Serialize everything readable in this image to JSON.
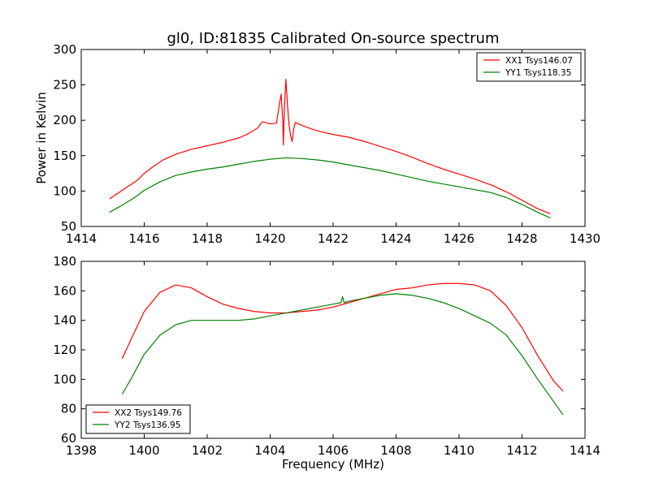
{
  "title": "gl0, ID:81835 Calibrated On-source spectrum",
  "chart_data": [
    {
      "type": "line",
      "ylabel": "Power in Kelvin",
      "xlabel": "",
      "xlim": [
        1414,
        1430
      ],
      "ylim": [
        50,
        300
      ],
      "xticks": [
        1414,
        1416,
        1418,
        1420,
        1422,
        1424,
        1426,
        1428,
        1430
      ],
      "yticks": [
        50,
        100,
        150,
        200,
        250,
        300
      ],
      "grid": false,
      "legend_position": "top-right",
      "series": [
        {
          "name": "XX1 Tsys146.07",
          "color": "#ff0000",
          "x": [
            1414.9,
            1415.2,
            1415.5,
            1415.8,
            1416.0,
            1416.3,
            1416.6,
            1417.0,
            1417.5,
            1418.0,
            1418.5,
            1419.0,
            1419.3,
            1419.6,
            1419.75,
            1420.0,
            1420.2,
            1420.3,
            1420.35,
            1420.4,
            1420.42,
            1420.45,
            1420.5,
            1420.55,
            1420.6,
            1420.65,
            1420.7,
            1420.75,
            1420.8,
            1421.0,
            1421.3,
            1421.6,
            1422.0,
            1422.5,
            1423.0,
            1423.5,
            1424.0,
            1424.5,
            1425.0,
            1425.5,
            1426.0,
            1426.5,
            1427.0,
            1427.5,
            1428.0,
            1428.5,
            1428.9
          ],
          "y": [
            89,
            98,
            107,
            116,
            125,
            135,
            144,
            152,
            159,
            164,
            169,
            175,
            181,
            189,
            198,
            195,
            196,
            224,
            237,
            200,
            165,
            215,
            258,
            222,
            194,
            178,
            170,
            188,
            197,
            193,
            188,
            184,
            180,
            176,
            170,
            163,
            156,
            148,
            139,
            131,
            124,
            117,
            109,
            99,
            87,
            75,
            68
          ]
        },
        {
          "name": "YY1 Tsys118.35",
          "color": "#008000",
          "x": [
            1414.9,
            1415.3,
            1415.7,
            1416.0,
            1416.5,
            1417.0,
            1417.5,
            1418.0,
            1418.5,
            1419.0,
            1419.5,
            1420.0,
            1420.5,
            1421.0,
            1421.5,
            1422.0,
            1422.5,
            1423.0,
            1423.5,
            1424.0,
            1424.5,
            1425.0,
            1425.5,
            1426.0,
            1426.5,
            1427.0,
            1427.5,
            1428.0,
            1428.5,
            1428.9
          ],
          "y": [
            70,
            80,
            91,
            101,
            113,
            122,
            127,
            131,
            134,
            138,
            142,
            145,
            147,
            146,
            144,
            141,
            137,
            133,
            129,
            124,
            119,
            114,
            110,
            106,
            102,
            98,
            91,
            81,
            70,
            62
          ]
        }
      ]
    },
    {
      "type": "line",
      "ylabel": "",
      "xlabel": "Frequency (MHz)",
      "xlim": [
        1398,
        1414
      ],
      "ylim": [
        60,
        180
      ],
      "xticks": [
        1398,
        1400,
        1402,
        1404,
        1406,
        1408,
        1410,
        1412,
        1414
      ],
      "yticks": [
        60,
        80,
        100,
        120,
        140,
        160,
        180
      ],
      "grid": false,
      "legend_position": "bottom-left",
      "series": [
        {
          "name": "XX2 Tsys149.76",
          "color": "#ff0000",
          "x": [
            1399.3,
            1399.6,
            1400.0,
            1400.5,
            1401.0,
            1401.5,
            1402.0,
            1402.5,
            1403.0,
            1403.5,
            1404.0,
            1404.5,
            1405.0,
            1405.5,
            1406.0,
            1406.5,
            1407.0,
            1407.5,
            1408.0,
            1408.5,
            1409.0,
            1409.5,
            1410.0,
            1410.5,
            1411.0,
            1411.5,
            1412.0,
            1412.5,
            1413.0,
            1413.3
          ],
          "y": [
            114,
            128,
            146,
            159,
            164,
            162,
            156,
            151,
            148,
            146,
            145,
            145,
            146,
            147,
            149,
            152,
            155,
            158,
            161,
            162,
            164,
            165,
            165,
            164,
            160,
            150,
            135,
            116,
            99,
            92
          ]
        },
        {
          "name": "YY2 Tsys136.95",
          "color": "#008000",
          "x": [
            1399.3,
            1399.6,
            1400.0,
            1400.5,
            1401.0,
            1401.5,
            1402.0,
            1402.5,
            1403.0,
            1403.5,
            1404.0,
            1404.5,
            1405.0,
            1405.5,
            1406.0,
            1406.25,
            1406.3,
            1406.35,
            1406.5,
            1407.0,
            1407.5,
            1408.0,
            1408.5,
            1409.0,
            1409.5,
            1410.0,
            1410.5,
            1411.0,
            1411.5,
            1412.0,
            1412.5,
            1413.0,
            1413.3
          ],
          "y": [
            90,
            101,
            117,
            130,
            137,
            140,
            140,
            140,
            140,
            141,
            143,
            145,
            147,
            149,
            151,
            152,
            156,
            152,
            153,
            155,
            157,
            158,
            157,
            155,
            152,
            148,
            143,
            138,
            130,
            116,
            100,
            85,
            76
          ]
        }
      ]
    }
  ]
}
